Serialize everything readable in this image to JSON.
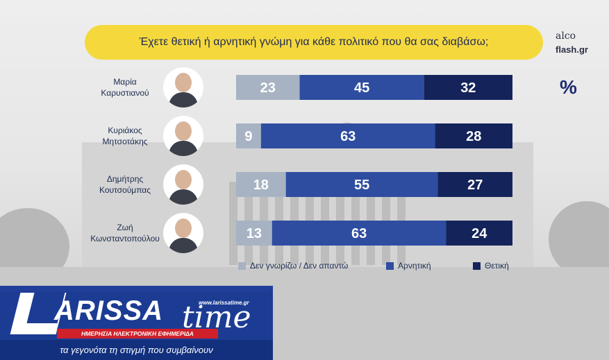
{
  "title": "Έχετε θετική ή αρνητική γνώμη για κάθε πολιτικό που θα σας διαβάσω;",
  "source_logo": {
    "line1": "alco",
    "line2": "flash.gr"
  },
  "unit_symbol": "%",
  "colors": {
    "dont_know": "#a7b3c3",
    "negative": "#2e4da1",
    "positive": "#14235a",
    "title_bg": "#f5d93c"
  },
  "chart_data": {
    "type": "bar",
    "orientation": "horizontal",
    "stacked": true,
    "categories": [
      [
        "Μαρία",
        "Καρυστιανού"
      ],
      [
        "Κυριάκος",
        "Μητσοτάκης"
      ],
      [
        "Δημήτρης",
        "Κουτσούμπας"
      ],
      [
        "Ζωή",
        "Κωνσταντοπούλου"
      ]
    ],
    "series": [
      {
        "name": "Δεν γνωρίζω / Δεν απαντώ",
        "values": [
          23,
          9,
          18,
          13
        ]
      },
      {
        "name": "Αρνητική",
        "values": [
          45,
          63,
          55,
          63
        ]
      },
      {
        "name": "Θετική",
        "values": [
          32,
          28,
          27,
          24
        ]
      }
    ],
    "legend_position": "bottom",
    "grid": false
  },
  "watermark": {
    "brand_letter": "L",
    "brand_rest": "ARISSA",
    "brand_time": "time",
    "url": "www.larissatime.gr",
    "subtitle": "ΗΜΕΡΗΣΙΑ ΗΛΕΚΤΡΟΝΙΚΗ ΕΦΗΜΕΡΙΔΑ",
    "tagline": "τα γεγονότα τη στιγμή που συμβαίνουν"
  }
}
